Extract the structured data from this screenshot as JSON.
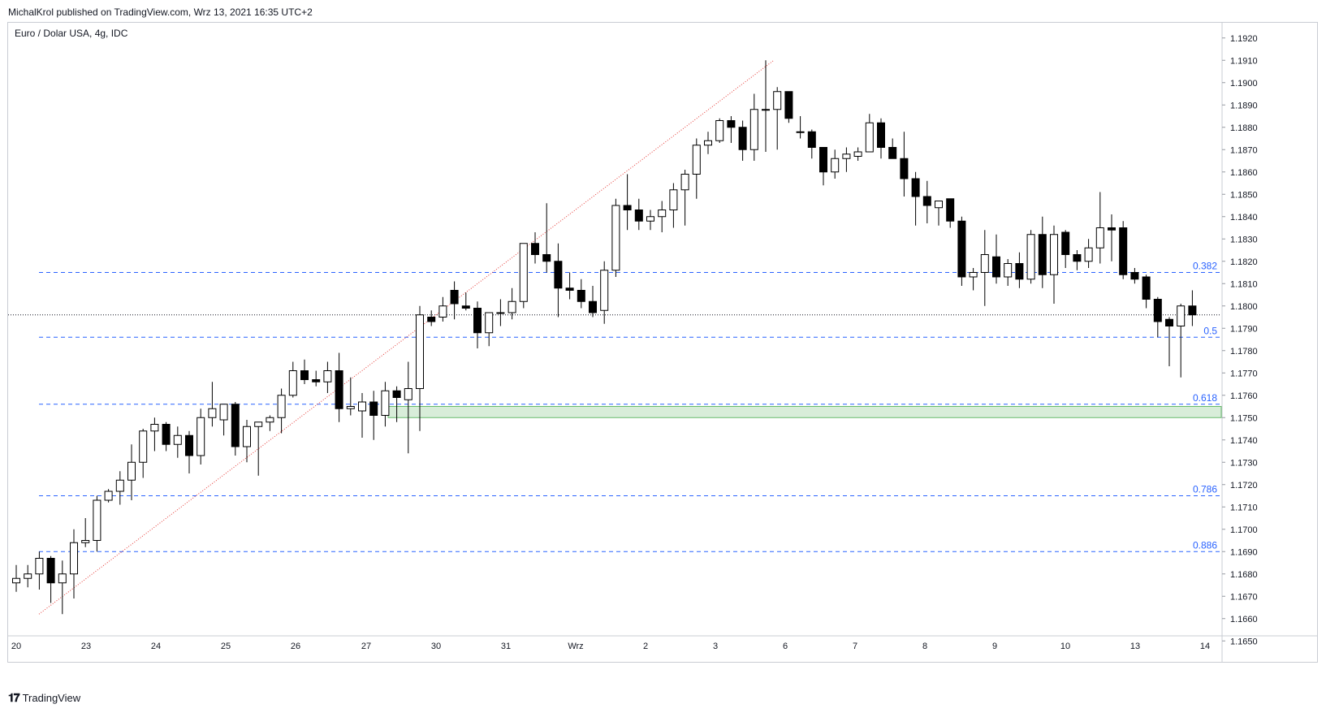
{
  "header": {
    "published": "MichalKrol published on TradingView.com, Wrz 13, 2021 16:35 UTC+2"
  },
  "symbol": {
    "title": "Euro / Dolar USA, 4g, IDC"
  },
  "footer": {
    "brand": "TradingView"
  },
  "colors": {
    "fib": "#2962ff",
    "trend": "#e53935",
    "zone_fill": "#c8e6c9",
    "zone_border": "#66bb6a",
    "candle": "#000000"
  },
  "chart_data": {
    "type": "candlestick",
    "ylim": [
      1.1645,
      1.1925
    ],
    "price_ticks": [
      "1.1650",
      "1.1660",
      "1.1670",
      "1.1680",
      "1.1690",
      "1.1700",
      "1.1710",
      "1.1720",
      "1.1730",
      "1.1740",
      "1.1750",
      "1.1760",
      "1.1770",
      "1.1780",
      "1.1790",
      "1.1800",
      "1.1810",
      "1.1820",
      "1.1830",
      "1.1840",
      "1.1850",
      "1.1860",
      "1.1870",
      "1.1880",
      "1.1890",
      "1.1900",
      "1.1910",
      "1.1920"
    ],
    "date_labels": [
      "20",
      "23",
      "24",
      "25",
      "26",
      "27",
      "30",
      "31",
      "Wrz",
      "2",
      "3",
      "6",
      "7",
      "8",
      "9",
      "10",
      "13",
      "14"
    ],
    "current_price": 1.1796,
    "fib_levels": [
      {
        "label": "0.382",
        "price": 1.1815
      },
      {
        "label": "0.5",
        "price": 1.1786
      },
      {
        "label": "0.618",
        "price": 1.1756
      },
      {
        "label": "0.786",
        "price": 1.1715
      },
      {
        "label": "0.886",
        "price": 1.169
      }
    ],
    "zone": {
      "top": 1.1755,
      "bottom": 1.175
    },
    "trendline": {
      "from": [
        0,
        1.1662
      ],
      "to": [
        69,
        1.1909
      ]
    },
    "candles": [
      [
        1.1676,
        1.1684,
        1.1672,
        1.1678
      ],
      [
        1.1678,
        1.1684,
        1.1674,
        1.168
      ],
      [
        1.168,
        1.169,
        1.1673,
        1.1687
      ],
      [
        1.1687,
        1.1688,
        1.1667,
        1.1676
      ],
      [
        1.1676,
        1.1686,
        1.1662,
        1.168
      ],
      [
        1.168,
        1.17,
        1.1669,
        1.1694
      ],
      [
        1.1694,
        1.1705,
        1.1692,
        1.1695
      ],
      [
        1.1695,
        1.1715,
        1.169,
        1.1713
      ],
      [
        1.1713,
        1.1718,
        1.1712,
        1.1717
      ],
      [
        1.1717,
        1.1726,
        1.1711,
        1.1722
      ],
      [
        1.1722,
        1.1738,
        1.1713,
        1.173
      ],
      [
        1.173,
        1.1745,
        1.1723,
        1.1744
      ],
      [
        1.1744,
        1.175,
        1.1735,
        1.1747
      ],
      [
        1.1747,
        1.1748,
        1.1735,
        1.1738
      ],
      [
        1.1738,
        1.1746,
        1.1732,
        1.1742
      ],
      [
        1.1742,
        1.1744,
        1.1725,
        1.1733
      ],
      [
        1.1733,
        1.1754,
        1.1729,
        1.175
      ],
      [
        1.175,
        1.1766,
        1.1746,
        1.1754
      ],
      [
        1.1749,
        1.1756,
        1.1742,
        1.1756
      ],
      [
        1.1756,
        1.1757,
        1.1733,
        1.1737
      ],
      [
        1.1737,
        1.1749,
        1.173,
        1.1746
      ],
      [
        1.1746,
        1.1748,
        1.1724,
        1.1748
      ],
      [
        1.1748,
        1.1751,
        1.1744,
        1.175
      ],
      [
        1.175,
        1.1763,
        1.1743,
        1.176
      ],
      [
        1.176,
        1.1775,
        1.1759,
        1.1771
      ],
      [
        1.1771,
        1.1776,
        1.1765,
        1.1767
      ],
      [
        1.1767,
        1.1771,
        1.1764,
        1.1766
      ],
      [
        1.1766,
        1.1775,
        1.1761,
        1.1771
      ],
      [
        1.1771,
        1.1779,
        1.1748,
        1.1754
      ],
      [
        1.1754,
        1.1768,
        1.1751,
        1.1755
      ],
      [
        1.1753,
        1.1761,
        1.1741,
        1.1757
      ],
      [
        1.1757,
        1.1762,
        1.174,
        1.1751
      ],
      [
        1.1751,
        1.1766,
        1.1746,
        1.1762
      ],
      [
        1.1762,
        1.1764,
        1.1748,
        1.1759
      ],
      [
        1.1758,
        1.1775,
        1.1734,
        1.1763
      ],
      [
        1.1763,
        1.18,
        1.1744,
        1.1796
      ],
      [
        1.1795,
        1.1798,
        1.1791,
        1.1793
      ],
      [
        1.1795,
        1.1804,
        1.1793,
        1.18
      ],
      [
        1.1807,
        1.1811,
        1.1794,
        1.1801
      ],
      [
        1.18,
        1.1806,
        1.1798,
        1.1799
      ],
      [
        1.1799,
        1.1802,
        1.1781,
        1.1788
      ],
      [
        1.1788,
        1.1797,
        1.1782,
        1.1797
      ],
      [
        1.1797,
        1.1803,
        1.1791,
        1.1797
      ],
      [
        1.1797,
        1.1808,
        1.1794,
        1.1802
      ],
      [
        1.1802,
        1.1828,
        1.1799,
        1.1828
      ],
      [
        1.1828,
        1.1833,
        1.1819,
        1.1823
      ],
      [
        1.1823,
        1.1846,
        1.1815,
        1.182
      ],
      [
        1.182,
        1.1828,
        1.1795,
        1.1808
      ],
      [
        1.1808,
        1.1815,
        1.1803,
        1.1807
      ],
      [
        1.1807,
        1.1812,
        1.1799,
        1.1802
      ],
      [
        1.1802,
        1.1809,
        1.1795,
        1.1797
      ],
      [
        1.1798,
        1.182,
        1.1792,
        1.1816
      ],
      [
        1.1816,
        1.1848,
        1.1813,
        1.1845
      ],
      [
        1.1845,
        1.1859,
        1.1834,
        1.1843
      ],
      [
        1.1843,
        1.1848,
        1.1834,
        1.1838
      ],
      [
        1.1838,
        1.1843,
        1.1834,
        1.184
      ],
      [
        1.184,
        1.1847,
        1.1833,
        1.1843
      ],
      [
        1.1843,
        1.1855,
        1.1835,
        1.1852
      ],
      [
        1.1852,
        1.1861,
        1.1836,
        1.1859
      ],
      [
        1.1859,
        1.1875,
        1.1848,
        1.1872
      ],
      [
        1.1872,
        1.1878,
        1.1868,
        1.1874
      ],
      [
        1.1874,
        1.1884,
        1.1873,
        1.1883
      ],
      [
        1.1883,
        1.1885,
        1.1873,
        1.188
      ],
      [
        1.188,
        1.1883,
        1.1865,
        1.187
      ],
      [
        1.187,
        1.1895,
        1.1865,
        1.1888
      ],
      [
        1.1888,
        1.191,
        1.1869,
        1.1888
      ],
      [
        1.1888,
        1.1898,
        1.187,
        1.1896
      ],
      [
        1.1896,
        1.1896,
        1.1882,
        1.1884
      ],
      [
        1.1878,
        1.1885,
        1.1875,
        1.1878
      ],
      [
        1.1878,
        1.1879,
        1.1866,
        1.1871
      ],
      [
        1.1871,
        1.1871,
        1.1854,
        1.186
      ],
      [
        1.186,
        1.187,
        1.1857,
        1.1866
      ],
      [
        1.1866,
        1.1871,
        1.186,
        1.1868
      ],
      [
        1.1867,
        1.1871,
        1.1865,
        1.1869
      ],
      [
        1.1869,
        1.1886,
        1.1869,
        1.1882
      ],
      [
        1.1882,
        1.1884,
        1.1866,
        1.1871
      ],
      [
        1.1871,
        1.1875,
        1.1866,
        1.1866
      ],
      [
        1.1866,
        1.1878,
        1.1849,
        1.1857
      ],
      [
        1.1857,
        1.186,
        1.1836,
        1.1849
      ],
      [
        1.1849,
        1.1856,
        1.1837,
        1.1845
      ],
      [
        1.1844,
        1.1847,
        1.1836,
        1.1847
      ],
      [
        1.1848,
        1.1848,
        1.1835,
        1.1838
      ],
      [
        1.1838,
        1.184,
        1.1809,
        1.1813
      ],
      [
        1.1813,
        1.1817,
        1.1807,
        1.1815
      ],
      [
        1.1815,
        1.1834,
        1.18,
        1.1823
      ],
      [
        1.1822,
        1.1832,
        1.181,
        1.1813
      ],
      [
        1.1813,
        1.1821,
        1.1809,
        1.1819
      ],
      [
        1.1819,
        1.1824,
        1.1808,
        1.1812
      ],
      [
        1.1812,
        1.1834,
        1.181,
        1.1832
      ],
      [
        1.1832,
        1.184,
        1.1808,
        1.1814
      ],
      [
        1.1814,
        1.1836,
        1.1801,
        1.1832
      ],
      [
        1.1833,
        1.1834,
        1.1817,
        1.1823
      ],
      [
        1.1823,
        1.1825,
        1.1816,
        1.182
      ],
      [
        1.182,
        1.183,
        1.1817,
        1.1826
      ],
      [
        1.1826,
        1.1851,
        1.1819,
        1.1835
      ],
      [
        1.1835,
        1.1841,
        1.182,
        1.1834
      ],
      [
        1.1835,
        1.1838,
        1.1812,
        1.1814
      ],
      [
        1.1815,
        1.1817,
        1.181,
        1.1812
      ],
      [
        1.1813,
        1.1814,
        1.1799,
        1.1803
      ],
      [
        1.1803,
        1.1804,
        1.1786,
        1.1793
      ],
      [
        1.1794,
        1.1795,
        1.1773,
        1.1791
      ],
      [
        1.1791,
        1.1801,
        1.1768,
        1.18
      ],
      [
        1.18,
        1.1807,
        1.1791,
        1.1796
      ]
    ]
  }
}
